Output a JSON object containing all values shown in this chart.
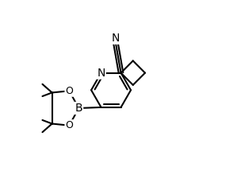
{
  "bg_color": "#ffffff",
  "line_color": "#000000",
  "line_width": 1.5,
  "font_size": 9,
  "figsize": [
    3.04,
    2.2
  ],
  "dpi": 100,
  "xlim": [
    0.0,
    1.0
  ],
  "ylim": [
    0.0,
    1.0
  ]
}
